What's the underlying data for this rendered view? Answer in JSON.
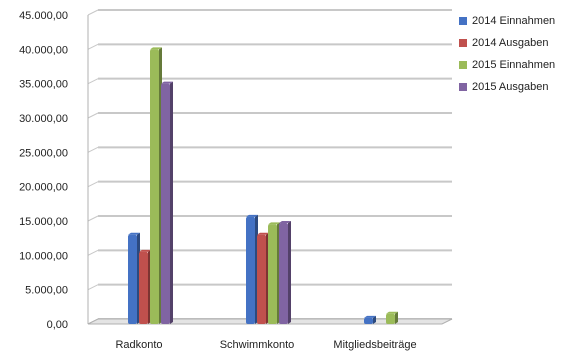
{
  "chart_data": {
    "type": "bar",
    "title": "",
    "xlabel": "",
    "ylabel": "",
    "categories": [
      "Radkonto",
      "Schwimmkonto",
      "Mitgliedsbeiträge"
    ],
    "ylim": [
      0,
      45000
    ],
    "y_ticks": [
      "0,00",
      "5.000,00",
      "10.000,00",
      "15.000,00",
      "20.000,00",
      "25.000,00",
      "30.000,00",
      "35.000,00",
      "40.000,00",
      "45.000,00"
    ],
    "series": [
      {
        "name": "2014 Einnahmen",
        "color": "#4472C4",
        "values": [
          13000,
          15600,
          900
        ]
      },
      {
        "name": "2014 Ausgaben",
        "color": "#C0504D",
        "values": [
          10500,
          13000,
          0
        ]
      },
      {
        "name": "2015 Einnahmen",
        "color": "#9BBB59",
        "values": [
          40000,
          14500,
          1500
        ]
      },
      {
        "name": "2015 Ausgaben",
        "color": "#8064A2",
        "values": [
          35000,
          14700,
          0
        ]
      }
    ],
    "grid": true,
    "legend_position": "right"
  }
}
